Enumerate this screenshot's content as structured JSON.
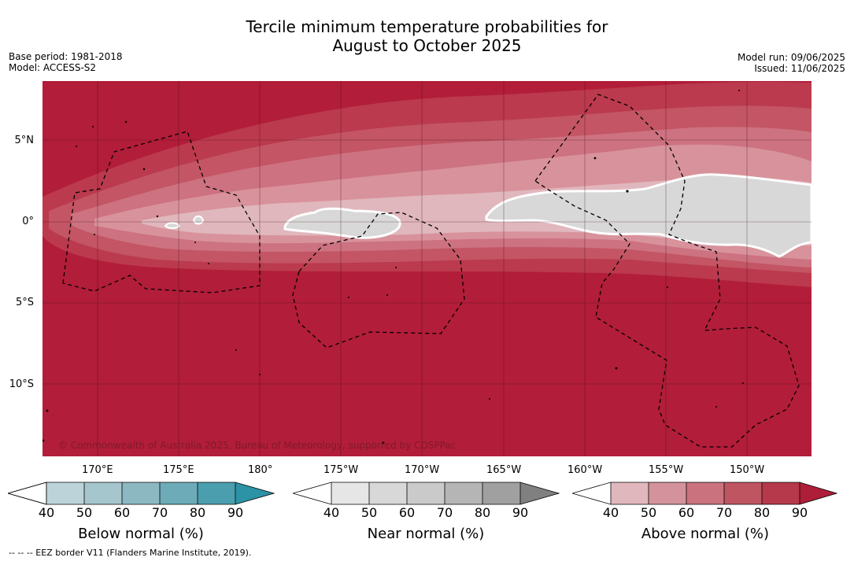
{
  "title_line1": "Tercile minimum temperature probabilities for",
  "title_line2": "August to October 2025",
  "base_period": "Base period: 1981-2018",
  "model": "Model: ACCESS-S2",
  "model_run": "Model run: 09/06/2025",
  "issued": "Issued: 11/06/2025",
  "lon_ticks": [
    "170°E",
    "175°E",
    "180°",
    "175°W",
    "170°W",
    "165°W",
    "160°W",
    "155°W",
    "150°W"
  ],
  "lat_ticks": [
    "5°N",
    "0°",
    "5°S",
    "10°S"
  ],
  "copyright": "© Commonwealth of Australia 2025, Bureau of Meteorology, supported by COSPPac",
  "colorbars": [
    {
      "label": "Below normal (%)",
      "ticks": [
        "40",
        "50",
        "60",
        "70",
        "80",
        "90"
      ],
      "colors": [
        "#ffffff",
        "#bdd3da",
        "#a6c6cd",
        "#8cb8c2",
        "#6dabb8",
        "#4b9eae",
        "#2c92a5"
      ]
    },
    {
      "label": "Near normal (%)",
      "ticks": [
        "40",
        "50",
        "60",
        "70",
        "80",
        "90"
      ],
      "colors": [
        "#ffffff",
        "#e6e6e6",
        "#d8d8d8",
        "#cacaca",
        "#b5b5b5",
        "#a0a0a0",
        "#808080"
      ]
    },
    {
      "label": "Above normal (%)",
      "ticks": [
        "40",
        "50",
        "60",
        "70",
        "80",
        "90"
      ],
      "colors": [
        "#ffffff",
        "#e0b7bd",
        "#d4939c",
        "#ca737e",
        "#c05562",
        "#b6384b",
        "#ae1e38"
      ]
    }
  ],
  "eez_legend": "--  --  -- EEZ border V11 (Flanders Marine Institute, 2019).",
  "colors": {
    "above_90": "#b21d39",
    "above_80": "#bb3a4d",
    "above_70": "#c35564",
    "above_60": "#cd7280",
    "above_50": "#d8929b",
    "near_50": "#d8d8d8"
  }
}
